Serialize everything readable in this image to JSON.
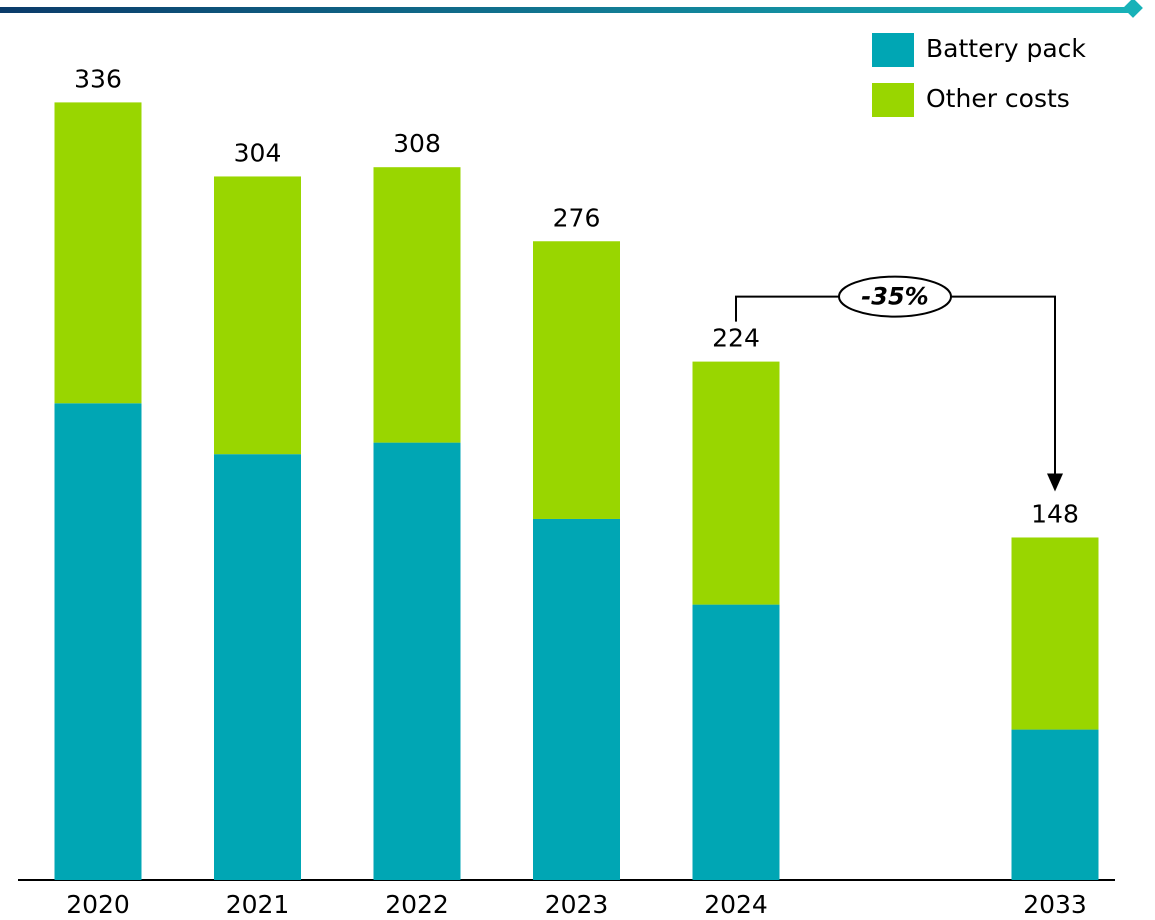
{
  "chart_data": {
    "type": "stacked_bar",
    "categories": [
      "2020",
      "2021",
      "2022",
      "2023",
      "2024",
      null,
      "2033"
    ],
    "series": [
      {
        "name": "Battery pack",
        "color": "#00a6b4",
        "values": [
          206,
          184,
          189,
          156,
          119,
          null,
          65
        ]
      },
      {
        "name": "Other costs",
        "color": "#99d600",
        "values": [
          130,
          120,
          119,
          120,
          105,
          null,
          83
        ]
      }
    ],
    "totals": [
      336,
      304,
      308,
      276,
      224,
      null,
      148
    ],
    "annotation": "-35%",
    "ylim": [
      0,
      350
    ],
    "legend": "top-right"
  }
}
